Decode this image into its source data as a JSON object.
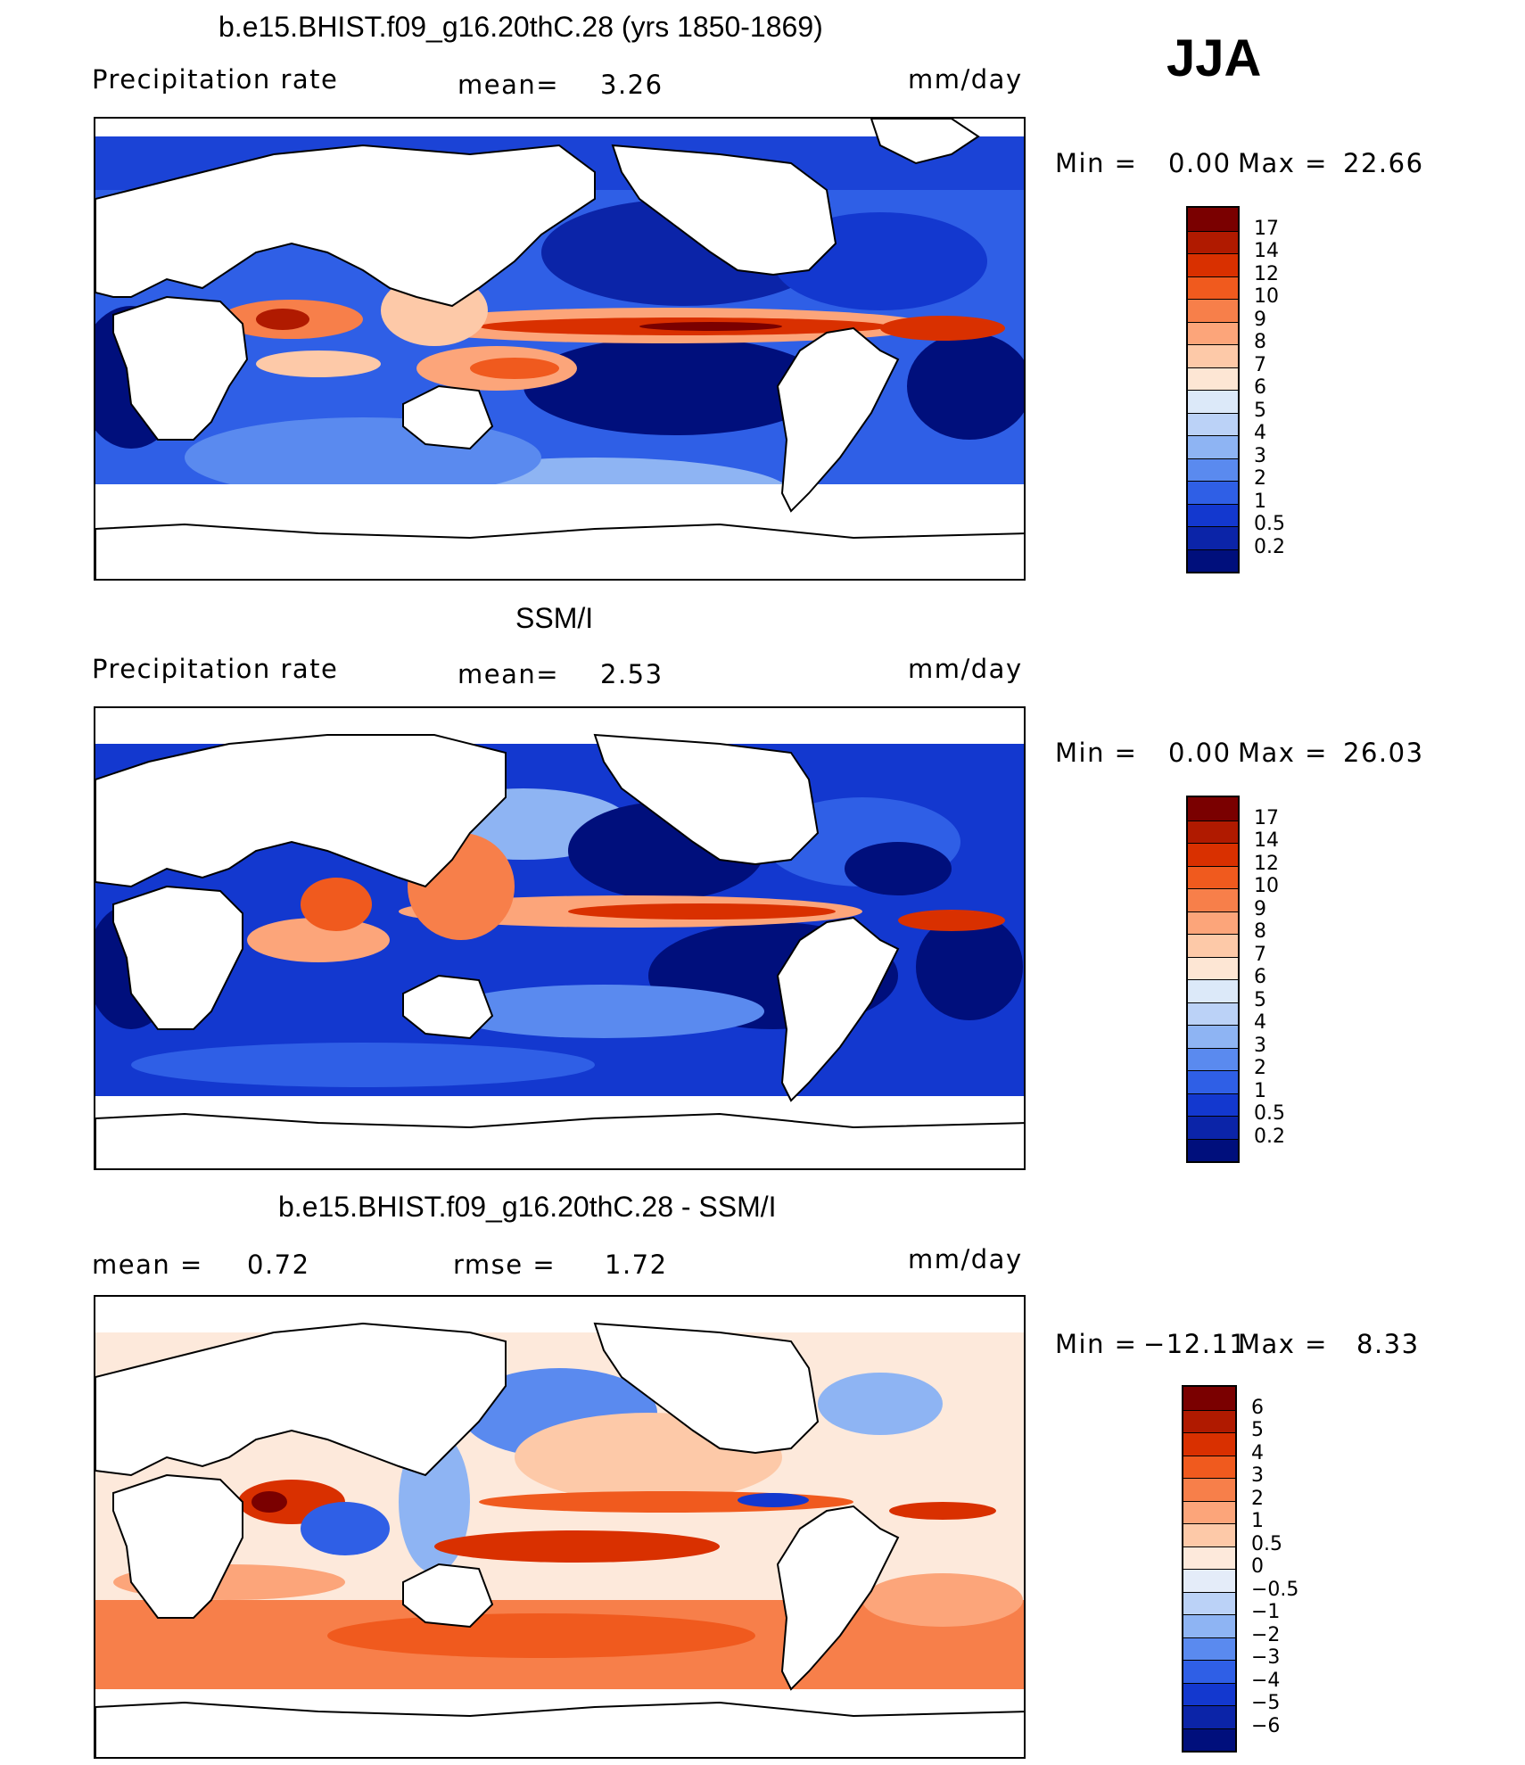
{
  "season": "JJA",
  "panels": [
    {
      "title": "b.e15.BHIST.f09_g16.20thC.28 (yrs 1850-1869)",
      "left_label": "Precipitation rate",
      "mid_label": "mean=",
      "mid_value": "3.26",
      "units": "mm/day",
      "minmax": {
        "min_label": "Min =",
        "min": "0.00",
        "max_label": "Max =",
        "max": "22.66"
      },
      "levels": [
        "17",
        "14",
        "12",
        "10",
        "9",
        "8",
        "7",
        "6",
        "5",
        "4",
        "3",
        "2",
        "1",
        "0.5",
        "0.2"
      ],
      "colors": [
        "#7a0000",
        "#b01a00",
        "#d93000",
        "#f05a1e",
        "#f77f4a",
        "#fca57a",
        "#fdc9a8",
        "#fde6d4",
        "#dce9f9",
        "#bbd2f7",
        "#8eb4f3",
        "#5a8aef",
        "#2f5fe6",
        "#1338cf",
        "#0b24a8",
        "#000f7c"
      ]
    },
    {
      "title": "SSM/I",
      "left_label": "Precipitation rate",
      "mid_label": "mean=",
      "mid_value": "2.53",
      "units": "mm/day",
      "minmax": {
        "min_label": "Min =",
        "min": "0.00",
        "max_label": "Max =",
        "max": "26.03"
      },
      "levels": [
        "17",
        "14",
        "12",
        "10",
        "9",
        "8",
        "7",
        "6",
        "5",
        "4",
        "3",
        "2",
        "1",
        "0.5",
        "0.2"
      ],
      "colors": [
        "#7a0000",
        "#b01a00",
        "#d93000",
        "#f05a1e",
        "#f77f4a",
        "#fca57a",
        "#fdc9a8",
        "#fde6d4",
        "#dce9f9",
        "#bbd2f7",
        "#8eb4f3",
        "#5a8aef",
        "#2f5fe6",
        "#1338cf",
        "#0b24a8",
        "#000f7c"
      ]
    },
    {
      "title": "b.e15.BHIST.f09_g16.20thC.28 - SSM/I",
      "left_label": "mean =",
      "left_value": "0.72",
      "mid_label": "rmse =",
      "mid_value": "1.72",
      "units": "mm/day",
      "minmax": {
        "min_label": "Min =",
        "min": "−12.11",
        "max_label": "Max =",
        "max": "8.33"
      },
      "levels": [
        "6",
        "5",
        "4",
        "3",
        "2",
        "1",
        "0.5",
        "0",
        "−0.5",
        "−1",
        "−2",
        "−3",
        "−4",
        "−5",
        "−6"
      ],
      "colors": [
        "#7a0000",
        "#b01a00",
        "#d93000",
        "#f05a1e",
        "#f77f4a",
        "#fca57a",
        "#fdc9a8",
        "#fde9db",
        "#e4ecf9",
        "#bbd2f7",
        "#8eb4f3",
        "#5a8aef",
        "#2f5fe6",
        "#1338cf",
        "#0b24a8",
        "#000f7c"
      ]
    }
  ]
}
